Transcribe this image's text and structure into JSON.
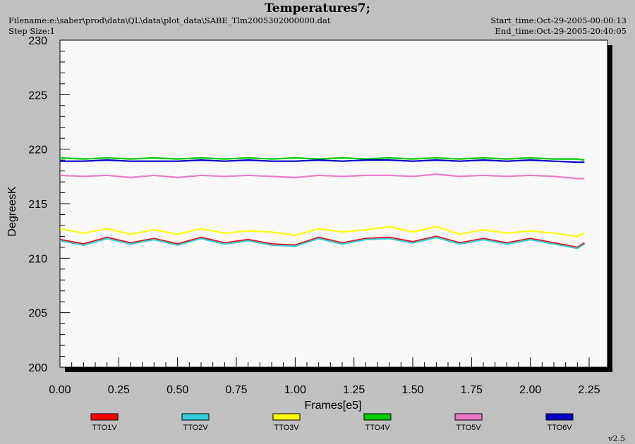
{
  "header": {
    "title": "Temperatures7;",
    "filename": "Filename:e:\\saber\\prod\\data\\QL\\data\\plot_data\\SABE_Tlm2005302000000.dat",
    "step_size": "Step Size:1",
    "start_time": "Start_time:Oct-29-2005-00:00:13",
    "end_time": "End_time:Oct-29-2005-20:40:05"
  },
  "version": "v2.5",
  "chart_data": {
    "type": "line",
    "title": "Temperatures7;",
    "xlabel": "Frames[e5]",
    "ylabel": "DegreesK",
    "xlim": [
      0,
      2.25
    ],
    "ylim": [
      200,
      230
    ],
    "x_ticks": [
      "0.00",
      "0.25",
      "0.50",
      "0.75",
      "1.00",
      "1.25",
      "1.50",
      "1.75",
      "2.00",
      "2.25"
    ],
    "y_ticks": [
      "200",
      "205",
      "210",
      "215",
      "220",
      "225",
      "230"
    ],
    "grid": false,
    "legend_position": "bottom",
    "x": [
      0.0,
      0.1,
      0.2,
      0.3,
      0.4,
      0.5,
      0.6,
      0.7,
      0.8,
      0.9,
      1.0,
      1.1,
      1.2,
      1.3,
      1.4,
      1.5,
      1.6,
      1.7,
      1.8,
      1.9,
      2.0,
      2.1,
      2.2,
      2.23
    ],
    "series": [
      {
        "name": "TTO1V",
        "color": "#ff0000",
        "values": [
          211.7,
          211.3,
          211.9,
          211.4,
          211.8,
          211.3,
          211.9,
          211.4,
          211.7,
          211.3,
          211.2,
          211.9,
          211.4,
          211.8,
          211.9,
          211.5,
          212.0,
          211.4,
          211.8,
          211.4,
          211.8,
          211.4,
          211.0,
          211.4
        ]
      },
      {
        "name": "TTO2V",
        "color": "#33ccdd",
        "values": [
          211.6,
          211.2,
          211.8,
          211.3,
          211.7,
          211.2,
          211.8,
          211.3,
          211.6,
          211.2,
          211.1,
          211.8,
          211.3,
          211.7,
          211.8,
          211.4,
          211.9,
          211.3,
          211.7,
          211.3,
          211.7,
          211.3,
          210.9,
          211.3
        ]
      },
      {
        "name": "TTO3V",
        "color": "#ffff00",
        "values": [
          212.7,
          212.3,
          212.7,
          212.2,
          212.6,
          212.2,
          212.7,
          212.3,
          212.5,
          212.4,
          212.1,
          212.7,
          212.4,
          212.6,
          212.9,
          212.4,
          212.9,
          212.2,
          212.6,
          212.3,
          212.5,
          212.3,
          212.0,
          212.3
        ]
      },
      {
        "name": "TTO4V",
        "color": "#00cc00",
        "values": [
          219.2,
          219.1,
          219.2,
          219.1,
          219.2,
          219.1,
          219.2,
          219.1,
          219.2,
          219.1,
          219.2,
          219.1,
          219.2,
          219.1,
          219.2,
          219.1,
          219.2,
          219.1,
          219.2,
          219.1,
          219.2,
          219.1,
          219.1,
          219.0
        ]
      },
      {
        "name": "TTO5V",
        "color": "#ee77cc",
        "values": [
          217.6,
          217.5,
          217.6,
          217.4,
          217.6,
          217.4,
          217.6,
          217.5,
          217.6,
          217.5,
          217.4,
          217.6,
          217.5,
          217.6,
          217.6,
          217.5,
          217.7,
          217.5,
          217.6,
          217.5,
          217.6,
          217.5,
          217.3,
          217.3
        ]
      },
      {
        "name": "TTO6V",
        "color": "#0000cc",
        "values": [
          218.9,
          218.9,
          219.0,
          218.9,
          218.9,
          218.9,
          219.0,
          218.9,
          219.0,
          218.9,
          218.9,
          219.0,
          218.9,
          219.0,
          219.0,
          218.9,
          219.0,
          218.9,
          219.0,
          218.9,
          219.0,
          218.9,
          218.8,
          218.8
        ]
      }
    ]
  }
}
